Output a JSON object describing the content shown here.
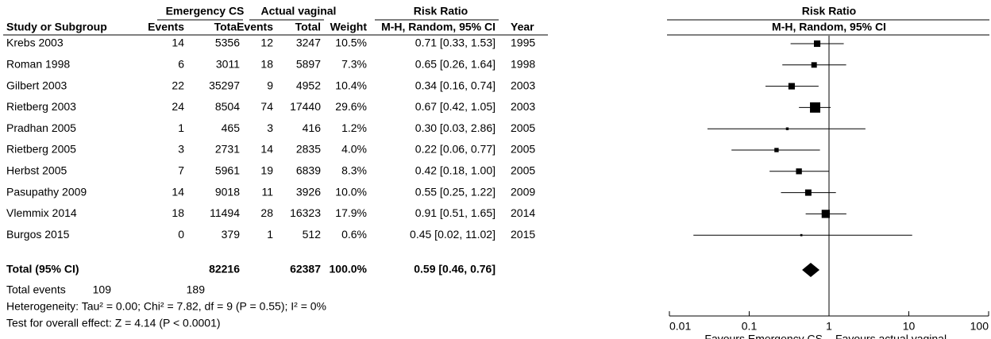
{
  "table": {
    "group_headers": [
      "Emergency CS",
      "Actual vaginal",
      "Risk Ratio"
    ],
    "columns": [
      "Study or Subgroup",
      "Events",
      "Total",
      "Events",
      "Total",
      "Weight",
      "M-H, Random, 95% CI",
      "Year"
    ],
    "rows": [
      [
        "Krebs 2003",
        14,
        5356,
        12,
        3247,
        "10.5%",
        "0.71 [0.33, 1.53]",
        1995
      ],
      [
        "Roman 1998",
        6,
        3011,
        18,
        5897,
        "7.3%",
        "0.65 [0.26, 1.64]",
        1998
      ],
      [
        "Gilbert 2003",
        22,
        35297,
        9,
        4952,
        "10.4%",
        "0.34 [0.16, 0.74]",
        2003
      ],
      [
        "Rietberg 2003",
        24,
        8504,
        74,
        17440,
        "29.6%",
        "0.67 [0.42, 1.05]",
        2003
      ],
      [
        "Pradhan 2005",
        1,
        465,
        3,
        416,
        "1.2%",
        "0.30 [0.03, 2.86]",
        2005
      ],
      [
        "Rietberg 2005",
        3,
        2731,
        14,
        2835,
        "4.0%",
        "0.22 [0.06, 0.77]",
        2005
      ],
      [
        "Herbst 2005",
        7,
        5961,
        19,
        6839,
        "8.3%",
        "0.42 [0.18, 1.00]",
        2005
      ],
      [
        "Pasupathy 2009",
        14,
        9018,
        11,
        3926,
        "10.0%",
        "0.55 [0.25, 1.22]",
        2009
      ],
      [
        "Vlemmix 2014",
        18,
        11494,
        28,
        16323,
        "17.9%",
        "0.91 [0.51, 1.65]",
        2014
      ],
      [
        "Burgos 2015",
        0,
        379,
        1,
        512,
        "0.6%",
        "0.45 [0.02, 11.02]",
        2015
      ]
    ],
    "total_row": {
      "label": "Total (95% CI)",
      "total1": 82216,
      "total2": 62387,
      "weight": "100.0%",
      "ci": "0.59 [0.46, 0.76]"
    },
    "total_events": {
      "label": "Total events",
      "events1": 109,
      "events2": 189
    },
    "heterogeneity": "Heterogeneity: Tau² = 0.00; Chi² = 7.82, df = 9 (P = 0.55); I² = 0%",
    "overall_effect": "Test for overall effect: Z = 4.14 (P < 0.0001)"
  },
  "chart_data": {
    "type": "forest",
    "title": "Risk Ratio",
    "subtitle": "M-H, Random, 95% CI",
    "values": [
      0.71,
      0.65,
      0.34,
      0.67,
      0.3,
      0.22,
      0.42,
      0.55,
      0.91,
      0.45
    ],
    "lower": [
      0.33,
      0.26,
      0.16,
      0.42,
      0.03,
      0.06,
      0.18,
      0.25,
      0.51,
      0.02
    ],
    "upper": [
      1.53,
      1.64,
      0.74,
      1.05,
      2.86,
      0.77,
      1.0,
      1.22,
      1.65,
      11.02
    ],
    "weights": [
      10.5,
      7.3,
      10.4,
      29.6,
      1.2,
      4.0,
      8.3,
      10.0,
      17.9,
      0.6
    ],
    "total": {
      "value": 0.59,
      "lower": 0.46,
      "upper": 0.76
    },
    "xlim": [
      0.01,
      100
    ],
    "xticks": [
      0.01,
      0.1,
      1,
      10,
      100
    ],
    "log": true,
    "xlabel_left": "Favours Emergency CS",
    "xlabel_right": "Favours actual vaginal",
    "color": "#000000"
  }
}
